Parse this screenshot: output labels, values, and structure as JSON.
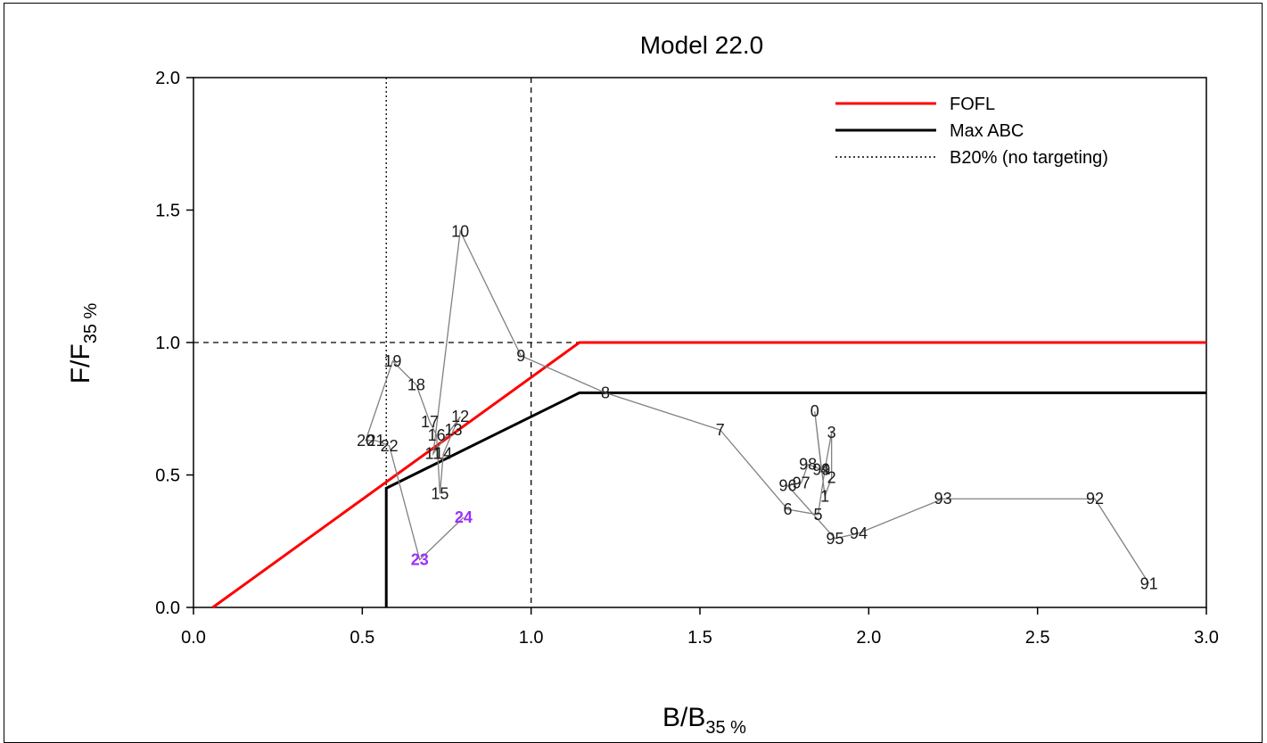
{
  "chart_data": {
    "type": "line",
    "title": "Model 22.0",
    "xlabel": "B/B",
    "xlabel_sub": "35 %",
    "ylabel": "F/F",
    "ylabel_sub": "35 %",
    "xlim": [
      0,
      3
    ],
    "ylim": [
      0,
      2
    ],
    "xticks": [
      "0.0",
      "0.5",
      "1.0",
      "1.5",
      "2.0",
      "2.5",
      "3.0"
    ],
    "yticks": [
      "0.0",
      "0.5",
      "1.0",
      "1.5",
      "2.0"
    ],
    "legend": {
      "position": "top-right",
      "items": [
        {
          "label": "FOFL",
          "color": "#ff0000",
          "style": "solid"
        },
        {
          "label": "Max ABC",
          "color": "#000000",
          "style": "solid"
        },
        {
          "label": "B20% (no targeting)",
          "color": "#000000",
          "style": "dotted"
        }
      ]
    },
    "reference_lines": {
      "horizontal_dashed_y": 1.0,
      "vertical_dashed_x": 1.0,
      "vertical_dotted_x": 0.571
    },
    "fofl_line": {
      "x": [
        0.057,
        1.143,
        3.0
      ],
      "y": [
        0.0,
        1.0,
        1.0
      ]
    },
    "maxabc_line": {
      "x": [
        0.571,
        0.571,
        1.143,
        3.0
      ],
      "y": [
        0.0,
        0.45,
        0.81,
        0.81
      ]
    },
    "trajectory": [
      {
        "label": "91",
        "x": 2.83,
        "y": 0.09
      },
      {
        "label": "92",
        "x": 2.67,
        "y": 0.41
      },
      {
        "label": "93",
        "x": 2.22,
        "y": 0.41
      },
      {
        "label": "94",
        "x": 1.97,
        "y": 0.28
      },
      {
        "label": "95",
        "x": 1.9,
        "y": 0.26
      },
      {
        "label": "96",
        "x": 1.76,
        "y": 0.46
      },
      {
        "label": "97",
        "x": 1.8,
        "y": 0.47
      },
      {
        "label": "98",
        "x": 1.82,
        "y": 0.54
      },
      {
        "label": "99",
        "x": 1.86,
        "y": 0.52
      },
      {
        "label": "0",
        "x": 1.84,
        "y": 0.74
      },
      {
        "label": "1",
        "x": 1.87,
        "y": 0.42
      },
      {
        "label": "2",
        "x": 1.89,
        "y": 0.49
      },
      {
        "label": "3",
        "x": 1.89,
        "y": 0.66
      },
      {
        "label": "4",
        "x": 1.87,
        "y": 0.52
      },
      {
        "label": "5",
        "x": 1.85,
        "y": 0.35
      },
      {
        "label": "6",
        "x": 1.76,
        "y": 0.37
      },
      {
        "label": "7",
        "x": 1.56,
        "y": 0.67
      },
      {
        "label": "8",
        "x": 1.22,
        "y": 0.81
      },
      {
        "label": "9",
        "x": 0.97,
        "y": 0.95
      },
      {
        "label": "10",
        "x": 0.79,
        "y": 1.42
      },
      {
        "label": "11",
        "x": 0.71,
        "y": 0.58
      },
      {
        "label": "12",
        "x": 0.79,
        "y": 0.72
      },
      {
        "label": "13",
        "x": 0.77,
        "y": 0.67
      },
      {
        "label": "14",
        "x": 0.74,
        "y": 0.58
      },
      {
        "label": "15",
        "x": 0.73,
        "y": 0.43
      },
      {
        "label": "16",
        "x": 0.72,
        "y": 0.65
      },
      {
        "label": "17",
        "x": 0.7,
        "y": 0.7
      },
      {
        "label": "18",
        "x": 0.66,
        "y": 0.84
      },
      {
        "label": "19",
        "x": 0.59,
        "y": 0.93
      },
      {
        "label": "20",
        "x": 0.51,
        "y": 0.63
      },
      {
        "label": "21",
        "x": 0.54,
        "y": 0.63
      },
      {
        "label": "22",
        "x": 0.58,
        "y": 0.61
      },
      {
        "label": "23",
        "x": 0.67,
        "y": 0.18
      },
      {
        "label": "24",
        "x": 0.8,
        "y": 0.34
      }
    ],
    "highlight_labels": [
      "23",
      "24"
    ],
    "colors": {
      "fofl": "#ff0000",
      "maxabc": "#000000",
      "trajectory": "#808080",
      "highlight": "#9b30ff"
    }
  }
}
